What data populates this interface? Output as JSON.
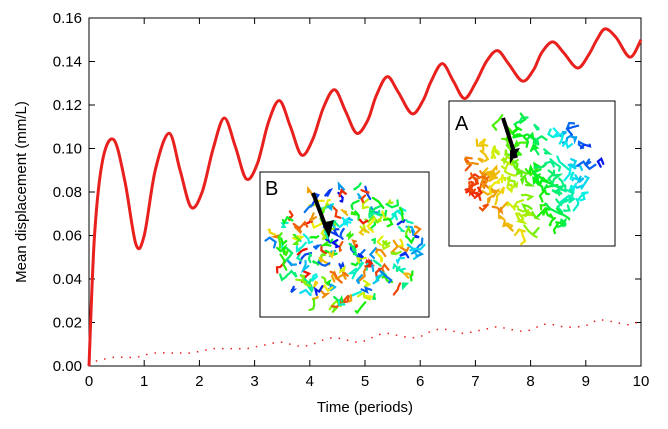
{
  "chart_data": {
    "type": "line",
    "xlabel": "Time (periods)",
    "ylabel": "Mean displacement (mm/L)",
    "annotations": [
      "A",
      "B"
    ],
    "x": [
      0,
      0.1,
      0.25,
      0.45,
      0.65,
      0.85,
      1.0,
      1.2,
      1.45,
      1.65,
      1.85,
      2.05,
      2.25,
      2.45,
      2.65,
      2.85,
      3.05,
      3.25,
      3.45,
      3.65,
      3.85,
      4.05,
      4.25,
      4.45,
      4.65,
      4.85,
      5.05,
      5.2,
      5.4,
      5.6,
      5.85,
      6.05,
      6.2,
      6.4,
      6.6,
      6.8,
      7.0,
      7.2,
      7.4,
      7.6,
      7.85,
      8.05,
      8.2,
      8.4,
      8.6,
      8.85,
      9.05,
      9.2,
      9.35,
      9.55,
      9.8,
      10
    ],
    "series": [
      {
        "color": "#e8201e",
        "style": "solid",
        "values": [
          0,
          0.06,
          0.095,
          0.104,
          0.085,
          0.056,
          0.06,
          0.09,
          0.107,
          0.09,
          0.073,
          0.08,
          0.1,
          0.114,
          0.101,
          0.086,
          0.093,
          0.112,
          0.122,
          0.11,
          0.097,
          0.104,
          0.119,
          0.127,
          0.117,
          0.107,
          0.113,
          0.124,
          0.133,
          0.126,
          0.116,
          0.122,
          0.131,
          0.139,
          0.131,
          0.123,
          0.13,
          0.14,
          0.145,
          0.139,
          0.131,
          0.136,
          0.144,
          0.149,
          0.144,
          0.137,
          0.143,
          0.15,
          0.155,
          0.151,
          0.142,
          0.15
        ]
      },
      {
        "color": "#e8201e",
        "style": "dotted",
        "values": [
          0,
          0.002,
          0.003,
          0.004,
          0.004,
          0.004,
          0.005,
          0.006,
          0.006,
          0.006,
          0.006,
          0.007,
          0.008,
          0.008,
          0.008,
          0.008,
          0.009,
          0.01,
          0.011,
          0.01,
          0.009,
          0.01,
          0.012,
          0.013,
          0.012,
          0.011,
          0.012,
          0.014,
          0.015,
          0.014,
          0.013,
          0.014,
          0.016,
          0.017,
          0.016,
          0.015,
          0.016,
          0.017,
          0.018,
          0.017,
          0.016,
          0.017,
          0.019,
          0.019,
          0.018,
          0.018,
          0.019,
          0.021,
          0.021,
          0.02,
          0.019,
          0.021
        ]
      }
    ],
    "xlim": [
      0,
      10
    ],
    "xticks": [
      0,
      1,
      2,
      3,
      4,
      5,
      6,
      7,
      8,
      9,
      10
    ],
    "ylim": [
      0,
      0.16
    ],
    "yticks": [
      {
        "value": 0,
        "label": "0.00"
      },
      0.02,
      0.04,
      0.06,
      0.08,
      {
        "value": 0.1,
        "label": "0.10"
      },
      0.12,
      0.14,
      {
        "value": 0.16,
        "label": "0.16"
      }
    ],
    "grid": false
  }
}
